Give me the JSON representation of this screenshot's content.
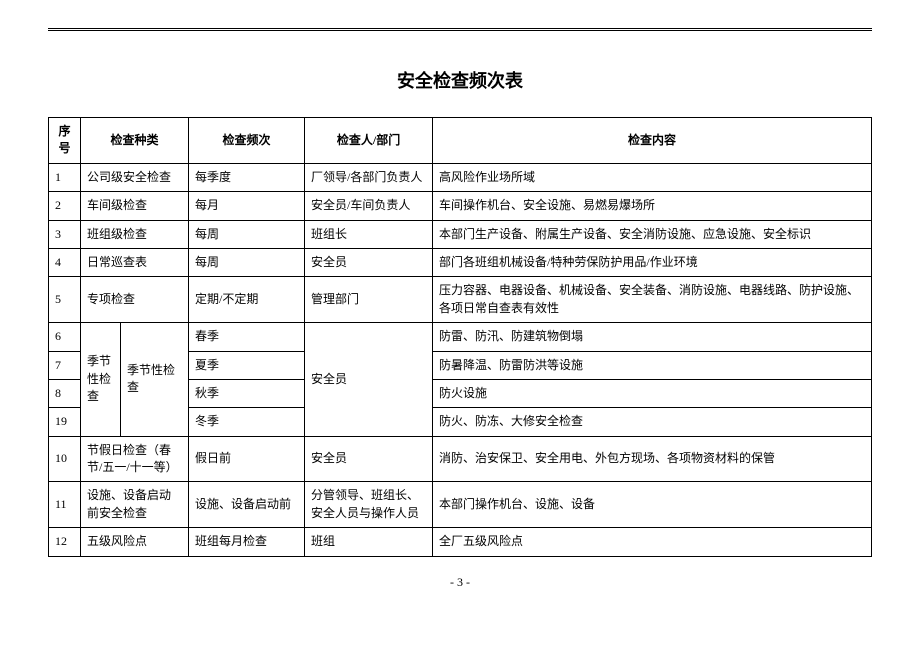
{
  "title": "安全检查频次表",
  "page_number": "- 3 -",
  "columns": [
    "序号",
    "检查种类",
    "检查频次",
    "检查人/部门",
    "检查内容"
  ],
  "rows_top": [
    {
      "seq": "1",
      "type": "公司级安全检查",
      "freq": "每季度",
      "who": "厂领导/各部门负责人",
      "what": "高风险作业场所域"
    },
    {
      "seq": "2",
      "type": "车间级检查",
      "freq": "每月",
      "who": "安全员/车间负责人",
      "what": "车间操作机台、安全设施、易燃易爆场所"
    },
    {
      "seq": "3",
      "type": "班组级检查",
      "freq": "每周",
      "who": "班组长",
      "what": "本部门生产设备、附属生产设备、安全消防设施、应急设施、安全标识"
    },
    {
      "seq": "4",
      "type": "日常巡查表",
      "freq": "每周",
      "who": "安全员",
      "what": "部门各班组机械设备/特种劳保防护用品/作业环境"
    },
    {
      "seq": "5",
      "type": "专项检查",
      "freq": "定期/不定期",
      "who": "管理部门",
      "what": "压力容器、电器设备、机械设备、安全装备、消防设施、电器线路、防护设施、各项日常自查表有效性"
    }
  ],
  "seasonal": {
    "type_label_a": "季节性检查",
    "type_label_b": "季节性检查",
    "who": "安全员",
    "items": [
      {
        "seq": "6",
        "season": "春季",
        "what": "防雷、防汛、防建筑物倒塌"
      },
      {
        "seq": "7",
        "season": "夏季",
        "what": "防暑降温、防雷防洪等设施"
      },
      {
        "seq": "8",
        "season": "秋季",
        "what": "防火设施"
      },
      {
        "seq": "19",
        "season": "冬季",
        "what": "防火、防冻、大修安全检查"
      }
    ]
  },
  "rows_bottom": [
    {
      "seq": "10",
      "type": "节假日检查（春节/五一/十一等）",
      "freq": "假日前",
      "who": "安全员",
      "what": "消防、治安保卫、安全用电、外包方现场、各项物资材料的保管"
    },
    {
      "seq": "11",
      "type": "设施、设备启动前安全检查",
      "freq": "设施、设备启动前",
      "who": "分管领导、班组长、安全人员与操作人员",
      "what": "本部门操作机台、设施、设备"
    },
    {
      "seq": "12",
      "type": "五级风险点",
      "freq": "班组每月检查",
      "who": "班组",
      "what": "全厂五级风险点"
    }
  ]
}
